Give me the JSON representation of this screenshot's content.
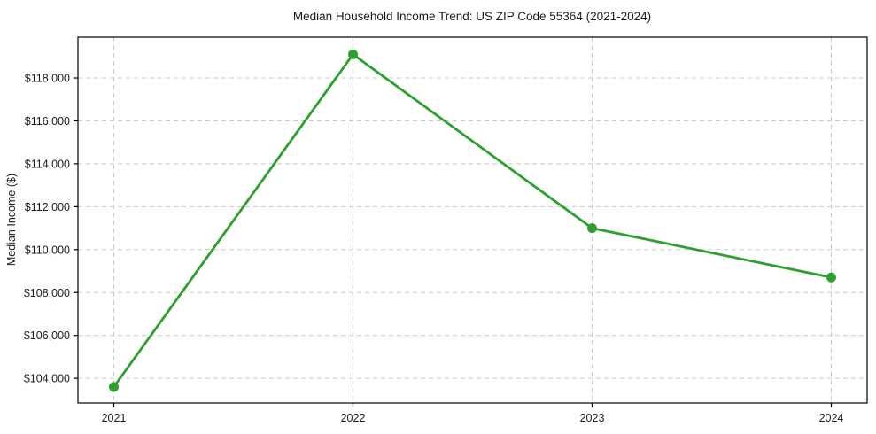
{
  "chart_data": {
    "type": "line",
    "title": "Median Household Income Trend: US ZIP Code 55364 (2021-2024)",
    "xlabel": "",
    "ylabel": "Median Income ($)",
    "categories": [
      "2021",
      "2022",
      "2023",
      "2024"
    ],
    "x": [
      2021,
      2022,
      2023,
      2024
    ],
    "series": [
      {
        "name": "Median Household Income",
        "values": [
          103600,
          119100,
          111000,
          108700
        ]
      }
    ],
    "values": [
      103600,
      119100,
      111000,
      108700
    ],
    "yticks": [
      104000,
      106000,
      108000,
      110000,
      112000,
      114000,
      116000,
      118000
    ],
    "ytick_labels": [
      "$104,000",
      "$106,000",
      "$108,000",
      "$110,000",
      "$112,000",
      "$114,000",
      "$116,000",
      "$118,000"
    ],
    "xtick_labels": [
      "2021",
      "2022",
      "2023",
      "2024"
    ],
    "xlim": [
      2020.85,
      2024.15
    ],
    "ylim": [
      102850,
      119900
    ],
    "grid": true,
    "legend": "none",
    "marker": "circle",
    "colors": {
      "line": "#2ca02c",
      "marker": "#2ca02c",
      "grid": "#c9c9c9",
      "axis": "#000000",
      "text": "#1a1a1a",
      "background": "#ffffff"
    }
  }
}
